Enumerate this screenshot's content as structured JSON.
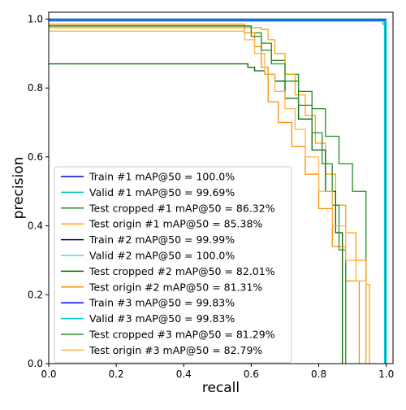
{
  "chart_data": {
    "type": "line",
    "title": "",
    "xlabel": "recall",
    "ylabel": "precision",
    "xlim": [
      0,
      1.02
    ],
    "ylim": [
      0,
      1.02
    ],
    "x_ticks": [
      "0.0",
      "0.2",
      "0.4",
      "0.6",
      "0.8",
      "1.0"
    ],
    "y_ticks": [
      "0.0",
      "0.2",
      "0.4",
      "0.6",
      "0.8",
      "1.0"
    ],
    "grid": false,
    "legend_position": "lower-left",
    "series": [
      {
        "name": "Train #1 mAP@50 = 100.0%",
        "color": "#0000cc",
        "x": [
          0,
          0.999,
          1.0,
          1.0
        ],
        "y": [
          1.0,
          1.0,
          1.0,
          0.0
        ]
      },
      {
        "name": "Valid #1 mAP@50 = 99.69%",
        "color": "#00bfbf",
        "x": [
          0,
          0.99,
          0.99,
          0.996,
          0.996
        ],
        "y": [
          1.0,
          1.0,
          0.985,
          0.985,
          0.0
        ]
      },
      {
        "name": "Test cropped #1 mAP@50 = 86.32%",
        "color": "#228b22",
        "x": [
          0,
          0.55,
          0.6,
          0.63,
          0.66,
          0.7,
          0.74,
          0.78,
          0.82,
          0.86,
          0.9,
          0.94,
          0.94
        ],
        "y": [
          0.98,
          0.98,
          0.96,
          0.93,
          0.88,
          0.84,
          0.79,
          0.74,
          0.66,
          0.58,
          0.5,
          0.44,
          0.0
        ]
      },
      {
        "name": "Test origin #1 mAP@50 = 85.38%",
        "color": "#ffa500",
        "x": [
          0,
          0.6,
          0.63,
          0.65,
          0.67,
          0.7,
          0.73,
          0.76,
          0.79,
          0.82,
          0.85,
          0.88,
          0.91,
          0.94,
          0.95,
          0.95
        ],
        "y": [
          0.975,
          0.975,
          0.97,
          0.94,
          0.9,
          0.84,
          0.78,
          0.72,
          0.64,
          0.55,
          0.46,
          0.38,
          0.3,
          0.23,
          0.2,
          0.0
        ]
      },
      {
        "name": "Train #2 mAP@50 = 99.99%",
        "color": "#00008b",
        "x": [
          0,
          0.999,
          0.999
        ],
        "y": [
          1.0,
          1.0,
          0.0
        ]
      },
      {
        "name": "Valid #2 mAP@50 = 100.0%",
        "color": "#40e0d0",
        "x": [
          0,
          1.0,
          1.0
        ],
        "y": [
          0.999,
          0.999,
          0.0
        ]
      },
      {
        "name": "Test cropped #2 mAP@50 = 82.01%",
        "color": "#006400",
        "x": [
          0,
          0.56,
          0.59,
          0.61,
          0.64,
          0.67,
          0.7,
          0.74,
          0.78,
          0.82,
          0.85,
          0.87,
          0.87
        ],
        "y": [
          0.87,
          0.87,
          0.86,
          0.85,
          0.84,
          0.82,
          0.77,
          0.71,
          0.62,
          0.5,
          0.38,
          0.22,
          0.0
        ]
      },
      {
        "name": "Test origin #2 mAP@50 = 81.31%",
        "color": "#ff8c00",
        "x": [
          0,
          0.55,
          0.58,
          0.61,
          0.63,
          0.65,
          0.68,
          0.72,
          0.76,
          0.8,
          0.84,
          0.88,
          0.92,
          0.92
        ],
        "y": [
          0.985,
          0.985,
          0.96,
          0.92,
          0.86,
          0.76,
          0.7,
          0.63,
          0.55,
          0.45,
          0.34,
          0.24,
          0.18,
          0.0
        ]
      },
      {
        "name": "Train #3 mAP@50 = 99.83%",
        "color": "#0000ff",
        "x": [
          0,
          0.995,
          0.995
        ],
        "y": [
          0.997,
          0.997,
          0.0
        ]
      },
      {
        "name": "Valid #3 mAP@50 = 99.83%",
        "color": "#00ced1",
        "x": [
          0,
          0.995,
          0.995
        ],
        "y": [
          0.994,
          0.994,
          0.0
        ]
      },
      {
        "name": "Test cropped #3 mAP@50 = 81.29%",
        "color": "#2e8b2e",
        "x": [
          0,
          0.56,
          0.6,
          0.63,
          0.66,
          0.7,
          0.74,
          0.78,
          0.81,
          0.84,
          0.86,
          0.88,
          0.88
        ],
        "y": [
          0.98,
          0.98,
          0.95,
          0.91,
          0.87,
          0.82,
          0.75,
          0.67,
          0.58,
          0.46,
          0.33,
          0.2,
          0.0
        ]
      },
      {
        "name": "Test origin #3 mAP@50 = 82.79%",
        "color": "#ffb347",
        "x": [
          0,
          0.54,
          0.58,
          0.61,
          0.64,
          0.67,
          0.7,
          0.73,
          0.76,
          0.8,
          0.84,
          0.88,
          0.91,
          0.94,
          0.94
        ],
        "y": [
          0.965,
          0.965,
          0.94,
          0.9,
          0.84,
          0.79,
          0.74,
          0.68,
          0.6,
          0.5,
          0.4,
          0.3,
          0.24,
          0.18,
          0.0
        ]
      }
    ]
  }
}
